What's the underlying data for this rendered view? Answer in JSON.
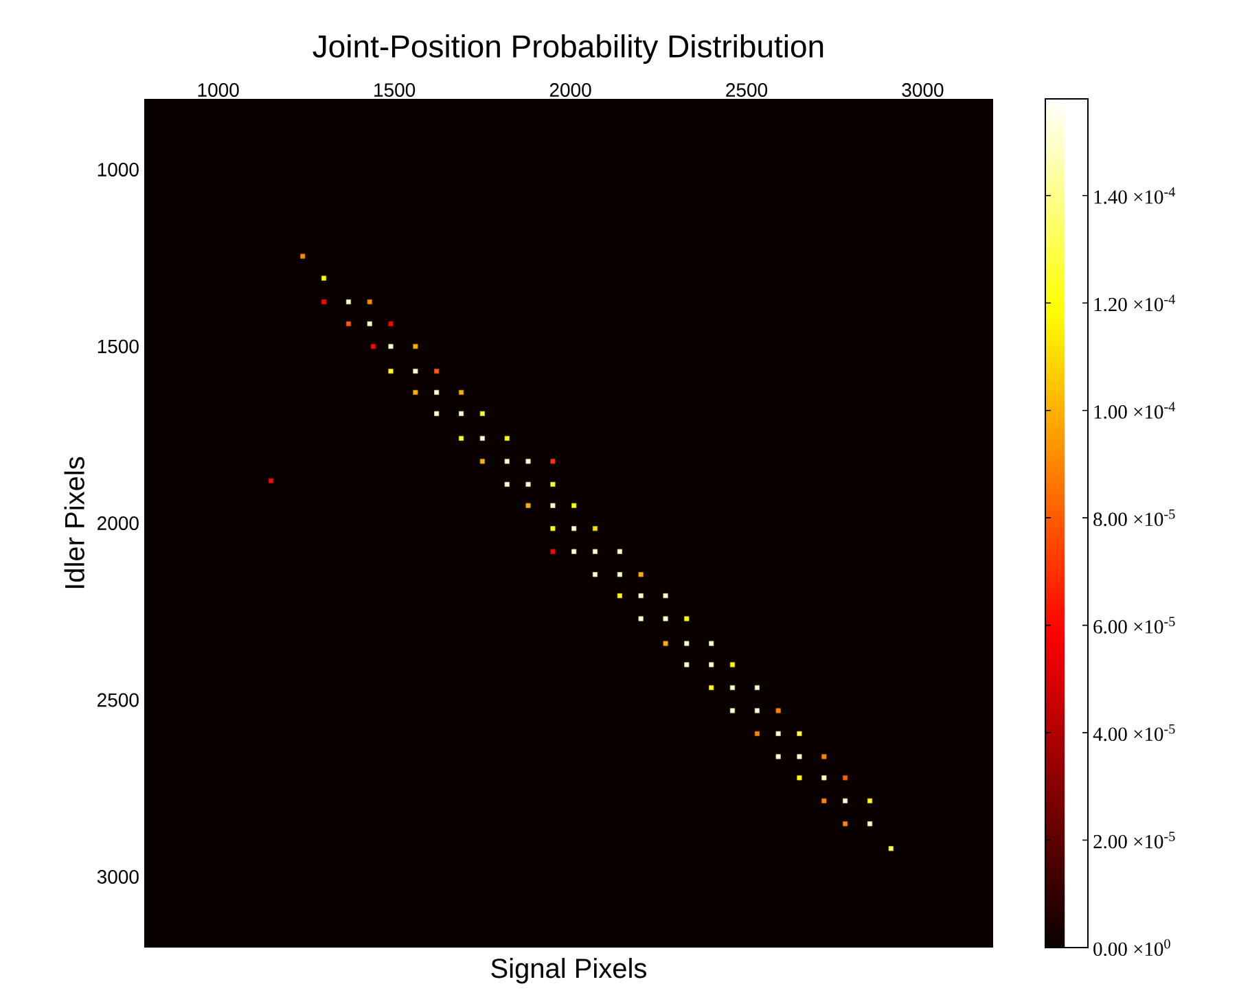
{
  "chart_data": {
    "type": "scatter",
    "title": "Joint-Position Probability Distribution",
    "xlabel": "Signal Pixels",
    "ylabel": "Idler Pixels",
    "xlim": [
      790,
      3200
    ],
    "xticks": [
      1000,
      1500,
      2000,
      2500,
      3000
    ],
    "ylim": [
      3200,
      800
    ],
    "yticks": [
      1000,
      1500,
      2000,
      2500,
      3000
    ],
    "marker": "square",
    "clim": [
      0,
      0.000158
    ],
    "cticks": [
      {
        "value": 0,
        "label": "0.00 ×10$^{0}$"
      },
      {
        "value": 2e-05,
        "label": "2.00 ×10$^{-5}$"
      },
      {
        "value": 4e-05,
        "label": "4.00 ×10$^{-5}$"
      },
      {
        "value": 6e-05,
        "label": "6.00 ×10$^{-5}$"
      },
      {
        "value": 8e-05,
        "label": "8.00 ×10$^{-5}$"
      },
      {
        "value": 0.0001,
        "label": "1.00 ×10$^{-4}$"
      },
      {
        "value": 0.00012,
        "label": "1.20 ×10$^{-4}$"
      },
      {
        "value": 0.00014,
        "label": "1.40 ×10$^{-4}$"
      }
    ],
    "x": [
      1240,
      1300,
      1300,
      1370,
      1430,
      1370,
      1430,
      1490,
      1440,
      1490,
      1560,
      1490,
      1560,
      1620,
      1560,
      1620,
      1690,
      1620,
      1690,
      1750,
      1690,
      1750,
      1820,
      1750,
      1820,
      1880,
      1950,
      1150,
      1820,
      1880,
      1950,
      1880,
      1950,
      2010,
      1950,
      2010,
      2070,
      1950,
      2010,
      2070,
      2140,
      2070,
      2140,
      2200,
      2140,
      2200,
      2270,
      2200,
      2270,
      2330,
      2270,
      2330,
      2400,
      2330,
      2400,
      2460,
      2400,
      2460,
      2530,
      2460,
      2530,
      2590,
      2530,
      2590,
      2650,
      2590,
      2650,
      2720,
      2650,
      2720,
      2780,
      2720,
      2780,
      2850,
      2780,
      2850,
      2910
    ],
    "values": [
      1245,
      1307,
      1374,
      1374,
      1374,
      1436,
      1436,
      1436,
      1500,
      1500,
      1500,
      1570,
      1570,
      1570,
      1630,
      1630,
      1630,
      1690,
      1690,
      1690,
      1760,
      1760,
      1760,
      1825,
      1825,
      1825,
      1825,
      1880,
      1890,
      1890,
      1890,
      1950,
      1950,
      1950,
      2015,
      2015,
      2015,
      2080,
      2080,
      2080,
      2080,
      2145,
      2145,
      2145,
      2205,
      2205,
      2205,
      2270,
      2270,
      2270,
      2340,
      2340,
      2340,
      2400,
      2400,
      2400,
      2465,
      2465,
      2465,
      2530,
      2530,
      2530,
      2595,
      2595,
      2595,
      2660,
      2660,
      2660,
      2720,
      2720,
      2720,
      2785,
      2785,
      2785,
      2850,
      2850,
      2920
    ],
    "cvalues": [
      9e-05,
      0.00012,
      6e-05,
      0.00015,
      9e-05,
      8e-05,
      0.00015,
      6e-05,
      6e-05,
      0.00015,
      0.0001,
      0.000125,
      0.00015,
      8e-05,
      0.0001,
      0.00015,
      0.0001,
      0.00015,
      0.00015,
      0.000125,
      0.000125,
      0.00015,
      0.00012,
      0.0001,
      0.00015,
      0.00015,
      7e-05,
      6e-05,
      0.00015,
      0.00015,
      0.000125,
      0.0001,
      0.00015,
      0.00012,
      0.00012,
      0.00015,
      0.00011,
      6e-05,
      0.00015,
      0.00015,
      0.00015,
      0.00015,
      0.00015,
      0.0001,
      0.00012,
      0.00015,
      0.00015,
      0.00015,
      0.00015,
      0.00012,
      0.0001,
      0.00015,
      0.00015,
      0.00015,
      0.00015,
      0.00012,
      0.00012,
      0.00015,
      0.00015,
      0.00015,
      0.00015,
      9e-05,
      9e-05,
      0.00015,
      0.00013,
      0.00015,
      0.00015,
      9e-05,
      0.00012,
      0.00015,
      8e-05,
      9e-05,
      0.00015,
      0.00012,
      9e-05,
      0.00015,
      0.00013
    ]
  }
}
